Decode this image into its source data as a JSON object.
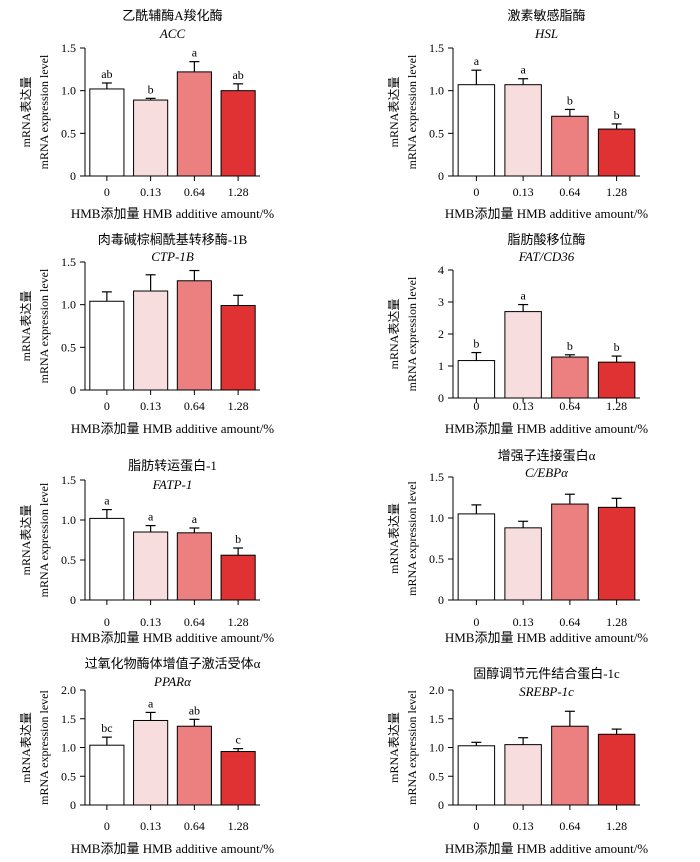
{
  "colors": {
    "level0": "#ffffff",
    "level1": "#f7dddd",
    "level2": "#ec8080",
    "level3": "#e03232",
    "stroke": "#000000"
  },
  "chart_data": [
    {
      "type": "bar",
      "title": "乙酰辅酶A羧化酶",
      "subtitle": "ACC",
      "ylabel": [
        "mRNA表达量",
        "mRNA expression level"
      ],
      "xlabel": "HMB添加量 HMB additive amount/%",
      "categories": [
        "0",
        "0.13",
        "0.64",
        "1.28"
      ],
      "values": [
        1.02,
        0.89,
        1.22,
        1.0
      ],
      "errors": [
        0.07,
        0.02,
        0.12,
        0.08
      ],
      "sig_letters": [
        "ab",
        "b",
        "a",
        "ab"
      ],
      "ylim": [
        0,
        1.5
      ],
      "yticks": [
        "0",
        "0.5",
        "1.0",
        "1.5"
      ]
    },
    {
      "type": "bar",
      "title": "激素敏感脂酶",
      "subtitle": "HSL",
      "ylabel": [
        "mRNA表达量",
        "mRNA expression level"
      ],
      "xlabel": "HMB添加量 HMB additive amount/%",
      "categories": [
        "0",
        "0.13",
        "0.64",
        "1.28"
      ],
      "values": [
        1.07,
        1.07,
        0.7,
        0.55
      ],
      "errors": [
        0.17,
        0.07,
        0.08,
        0.06
      ],
      "sig_letters": [
        "a",
        "a",
        "b",
        "b"
      ],
      "ylim": [
        0,
        1.5
      ],
      "yticks": [
        "0",
        "0.5",
        "1.0",
        "1.5"
      ]
    },
    {
      "type": "bar",
      "title": "肉毒碱棕榈酰基转移酶-1B",
      "subtitle": "CTP-1B",
      "ylabel": [
        "mRNA表达量",
        "mRNA expression level"
      ],
      "xlabel": "HMB添加量 HMB additive amount/%",
      "categories": [
        "0",
        "0.13",
        "0.64",
        "1.28"
      ],
      "values": [
        1.04,
        1.16,
        1.28,
        0.99
      ],
      "errors": [
        0.11,
        0.19,
        0.12,
        0.12
      ],
      "sig_letters": [
        "",
        "",
        "",
        ""
      ],
      "ylim": [
        0,
        1.5
      ],
      "yticks": [
        "0",
        "0.5",
        "1.0",
        "1.5"
      ]
    },
    {
      "type": "bar",
      "title": "脂肪酸移位酶",
      "subtitle": "FAT/CD36",
      "ylabel": [
        "mRNA表达量",
        "mRNA expression level"
      ],
      "xlabel": "HMB添加量 HMB additive amount/%",
      "categories": [
        "0",
        "0.13",
        "0.64",
        "1.28"
      ],
      "values": [
        1.17,
        2.7,
        1.28,
        1.12
      ],
      "errors": [
        0.25,
        0.22,
        0.07,
        0.19
      ],
      "sig_letters": [
        "b",
        "a",
        "b",
        "b"
      ],
      "ylim": [
        0,
        4
      ],
      "yticks": [
        "0",
        "1",
        "2",
        "3",
        "4"
      ]
    },
    {
      "type": "bar",
      "title": "脂肪转运蛋白-1",
      "subtitle": "FATP-1",
      "ylabel": [
        "mRNA表达量",
        "mRNA expression level"
      ],
      "xlabel": "HMB添加量 HMB additive amount/%",
      "categories": [
        "0",
        "0.13",
        "0.64",
        "1.28"
      ],
      "values": [
        1.02,
        0.85,
        0.84,
        0.56
      ],
      "errors": [
        0.11,
        0.08,
        0.06,
        0.09
      ],
      "sig_letters": [
        "a",
        "a",
        "a",
        "b"
      ],
      "ylim": [
        0,
        1.5
      ],
      "yticks": [
        "0",
        "0.5",
        "1.0",
        "1.5"
      ]
    },
    {
      "type": "bar",
      "title": "增强子连接蛋白α",
      "subtitle": "C/EBPα",
      "ylabel": [
        "mRNA表达量",
        "mRNA expression level"
      ],
      "xlabel": "HMB添加量 HMB additive amount/%",
      "categories": [
        "0",
        "0.13",
        "0.64",
        "1.28"
      ],
      "values": [
        1.05,
        0.88,
        1.17,
        1.13
      ],
      "errors": [
        0.11,
        0.08,
        0.12,
        0.11
      ],
      "sig_letters": [
        "",
        "",
        "",
        ""
      ],
      "ylim": [
        0,
        1.5
      ],
      "yticks": [
        "0",
        "0.5",
        "1.0",
        "1.5"
      ]
    },
    {
      "type": "bar",
      "title": "过氧化物酶体增值子激活受体α",
      "subtitle": "PPARα",
      "ylabel": [
        "mRNA表达量",
        "mRNA expression level"
      ],
      "xlabel": "HMB添加量 HMB additive amount/%",
      "categories": [
        "0",
        "0.13",
        "0.64",
        "1.28"
      ],
      "values": [
        1.04,
        1.47,
        1.37,
        0.93
      ],
      "errors": [
        0.14,
        0.14,
        0.12,
        0.05
      ],
      "sig_letters": [
        "bc",
        "a",
        "ab",
        "c"
      ],
      "ylim": [
        0,
        2.0
      ],
      "yticks": [
        "0",
        "0.5",
        "1.0",
        "1.5",
        "2.0"
      ]
    },
    {
      "type": "bar",
      "title": "固醇调节元件结合蛋白-1c",
      "subtitle": "SREBP-1c",
      "ylabel": [
        "mRNA表达量",
        "mRNA expression level"
      ],
      "xlabel": "HMB添加量 HMB additive amount/%",
      "categories": [
        "0",
        "0.13",
        "0.64",
        "1.28"
      ],
      "values": [
        1.03,
        1.05,
        1.37,
        1.23
      ],
      "errors": [
        0.06,
        0.12,
        0.26,
        0.09
      ],
      "sig_letters": [
        "",
        "",
        "",
        ""
      ],
      "ylim": [
        0,
        2.0
      ],
      "yticks": [
        "0",
        "0.5",
        "1.0",
        "1.5",
        "2.0"
      ]
    }
  ]
}
